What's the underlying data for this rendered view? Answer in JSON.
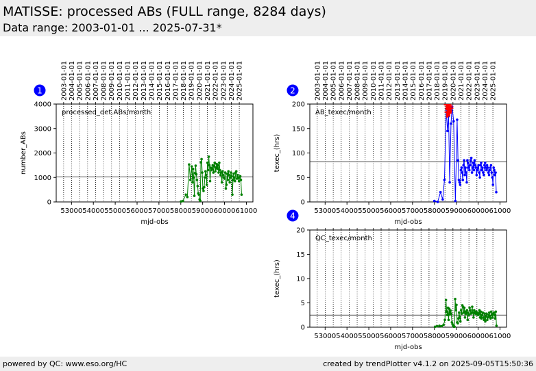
{
  "header": {
    "title": "MATISSE: processed ABs (FULL range, 8284 days)",
    "subtitle": "Data range: 2003-01-01 ... 2025-07-31*"
  },
  "footer": {
    "left": "powered by QC: www.eso.org/HC",
    "right": "created by trendPlotter v4.1.2 on 2025-09-05T15:50:36"
  },
  "colors": {
    "series1": "#008000",
    "series2": "#0000ff",
    "series3": "#008000",
    "outlier": "#ff0000",
    "badge": "#0000ff"
  },
  "year_ticks": [
    "2003-01-01",
    "2004-01-01",
    "2005-01-01",
    "2006-01-01",
    "2007-01-01",
    "2008-01-01",
    "2009-01-01",
    "2010-01-01",
    "2011-01-01",
    "2012-01-01",
    "2013-01-01",
    "2014-01-01",
    "2015-01-01",
    "2016-01-01",
    "2017-01-01",
    "2018-01-01",
    "2019-01-01",
    "2020-01-01",
    "2021-01-01",
    "2022-01-01",
    "2023-01-01",
    "2024-01-01",
    "2025-01-01"
  ],
  "chart_data": [
    {
      "type": "line",
      "badge": "1",
      "annotation": "processed_det.ABs/month",
      "xlabel": "mjd-obs",
      "ylabel": "number_ABs",
      "xlim": [
        52300,
        61300
      ],
      "ylim": [
        0,
        4000
      ],
      "xticks": [
        53000,
        54000,
        55000,
        56000,
        57000,
        58000,
        59000,
        60000,
        61000
      ],
      "yticks": [
        0,
        1000,
        2000,
        3000,
        4000
      ],
      "grid": "vertical dotted lines at year starts",
      "reference_line": 1020,
      "series": [
        {
          "x": [
            58010,
            58100,
            58230,
            58300,
            58380,
            58440,
            58500,
            58530,
            58560,
            58590,
            58620,
            58650,
            58680,
            58710,
            58740,
            58770,
            58800,
            58830,
            58860,
            58890,
            58920,
            58950,
            58980,
            59010,
            59040,
            59070,
            59100,
            59130,
            59160,
            59190,
            59220,
            59250,
            59280,
            59310,
            59340,
            59370,
            59400,
            59430,
            59460,
            59490,
            59520,
            59550,
            59580,
            59610,
            59640,
            59670,
            59700,
            59730,
            59760,
            59790,
            59820,
            59850,
            59880,
            59910,
            59940,
            59970,
            60000,
            60030,
            60060,
            60090,
            60120,
            60150,
            60180,
            60210,
            60240,
            60270,
            60300,
            60330,
            60360,
            60390,
            60420,
            60450,
            60480,
            60510,
            60540,
            60570,
            60600,
            60630,
            60660,
            60690,
            60720,
            60750,
            60780
          ],
          "values": [
            20,
            40,
            300,
            200,
            1530,
            900,
            1450,
            800,
            1350,
            1000,
            250,
            1180,
            1480,
            1130,
            900,
            650,
            350,
            300,
            100,
            50,
            1620,
            1750,
            1200,
            550,
            450,
            600,
            1000,
            1250,
            1100,
            700,
            1600,
            1300,
            1850,
            1500,
            850,
            1400,
            1300,
            1350,
            1500,
            1200,
            1450,
            1600,
            1250,
            1400,
            1550,
            1350,
            1500,
            1200,
            1600,
            1300,
            1100,
            1200,
            800,
            1250,
            1100,
            1000,
            950,
            1200,
            550,
            700,
            1150,
            900,
            1250,
            1100,
            800,
            1000,
            1200,
            1050,
            300,
            900,
            1150,
            1000,
            850,
            1200,
            1250,
            950,
            1100,
            1000,
            850,
            1000,
            1050,
            900,
            300
          ]
        }
      ]
    },
    {
      "type": "line",
      "badge": "2",
      "annotation": "AB_texec/month",
      "xlabel": "mjd-obs",
      "ylabel": "texec_(hrs)",
      "xlim": [
        52300,
        61300
      ],
      "ylim": [
        0,
        200
      ],
      "xticks": [
        53000,
        54000,
        55000,
        56000,
        57000,
        58000,
        59000,
        60000,
        61000
      ],
      "yticks": [
        0,
        50,
        100,
        150,
        200
      ],
      "grid": "vertical dotted lines at year starts",
      "reference_line": 82,
      "series": [
        {
          "x": [
            58000,
            58150,
            58280,
            58380,
            58460,
            58540,
            58600,
            58650,
            58700,
            58760,
            58810,
            58880,
            58960,
            59040,
            59080,
            59120,
            59150,
            59180,
            59210,
            59240,
            59270,
            59300,
            59330,
            59360,
            59390,
            59420,
            59450,
            59480,
            59510,
            59540,
            59570,
            59600,
            59630,
            59660,
            59690,
            59720,
            59750,
            59780,
            59810,
            59840,
            59870,
            59900,
            59930,
            59960,
            59990,
            60020,
            60050,
            60080,
            60110,
            60140,
            60170,
            60200,
            60230,
            60260,
            60290,
            60320,
            60350,
            60380,
            60410,
            60440,
            60470,
            60500,
            60530,
            60560,
            60590,
            60620,
            60650,
            60680,
            60710,
            60740,
            60770,
            60800,
            60830
          ],
          "values": [
            2,
            0,
            20,
            5,
            45,
            190,
            145,
            175,
            40,
            160,
            195,
            165,
            2,
            168,
            85,
            45,
            40,
            35,
            65,
            70,
            60,
            45,
            75,
            85,
            55,
            70,
            60,
            40,
            85,
            80,
            70,
            65,
            75,
            85,
            90,
            60,
            70,
            80,
            65,
            85,
            75,
            70,
            55,
            65,
            70,
            75,
            60,
            50,
            75,
            80,
            65,
            70,
            60,
            55,
            75,
            80,
            70,
            65,
            75,
            70,
            60,
            55,
            65,
            70,
            75,
            60,
            50,
            35,
            70,
            65,
            55,
            60,
            20
          ]
        },
        {
          "name_hidden": true,
          "x": [
            58560,
            58590,
            58620,
            58650,
            58680,
            58710,
            58740
          ],
          "values": [
            193,
            178,
            185,
            193,
            180,
            190,
            186
          ],
          "outlier": true
        }
      ]
    },
    {
      "type": "line",
      "badge": "4",
      "annotation": "QC_texec/month",
      "xlabel": "mjd-obs",
      "ylabel": "texec_(hrs)",
      "xlim": [
        52300,
        61300
      ],
      "ylim": [
        0,
        20
      ],
      "xticks": [
        53000,
        54000,
        55000,
        56000,
        57000,
        58000,
        59000,
        60000,
        61000
      ],
      "yticks": [
        0,
        5,
        10,
        15,
        20
      ],
      "grid": "vertical dotted lines at year starts",
      "reference_line": 2.5,
      "series": [
        {
          "x": [
            58030,
            58120,
            58230,
            58330,
            58420,
            58480,
            58530,
            58560,
            58590,
            58620,
            58650,
            58680,
            58710,
            58740,
            58770,
            58800,
            58830,
            58860,
            58890,
            58920,
            58950,
            58980,
            59010,
            59040,
            59070,
            59100,
            59130,
            59160,
            59190,
            59220,
            59250,
            59280,
            59310,
            59340,
            59370,
            59400,
            59430,
            59460,
            59490,
            59520,
            59550,
            59580,
            59610,
            59640,
            59670,
            59700,
            59730,
            59760,
            59790,
            59820,
            59850,
            59880,
            59910,
            59940,
            59970,
            60000,
            60030,
            60060,
            60090,
            60120,
            60150,
            60180,
            60210,
            60240,
            60270,
            60300,
            60330,
            60360,
            60390,
            60420,
            60450,
            60480,
            60510,
            60540,
            60570,
            60600,
            60630,
            60660,
            60690,
            60720,
            60750,
            60780,
            60810,
            60840
          ],
          "values": [
            0.1,
            0.2,
            0.3,
            0.2,
            0.5,
            1.5,
            5.6,
            3.2,
            2.5,
            4.0,
            1.5,
            3.8,
            2.6,
            3.4,
            2.8,
            1.0,
            0.6,
            0.3,
            0.1,
            0.1,
            5.8,
            3.5,
            4.6,
            1.0,
            0.8,
            1.8,
            3.0,
            2.0,
            1.2,
            3.5,
            2.8,
            4.5,
            4.2,
            3.0,
            4.0,
            2.0,
            3.2,
            2.8,
            3.5,
            1.5,
            3.0,
            2.5,
            4.0,
            3.5,
            2.8,
            3.0,
            4.2,
            3.0,
            2.0,
            3.5,
            3.0,
            2.8,
            3.2,
            2.6,
            3.0,
            2.5,
            2.8,
            3.5,
            2.0,
            3.2,
            1.8,
            2.5,
            3.0,
            2.0,
            1.5,
            2.8,
            1.2,
            2.2,
            2.8,
            1.5,
            2.0,
            2.5,
            3.0,
            2.2,
            1.8,
            3.2,
            2.5,
            2.0,
            2.8,
            3.0,
            2.5,
            1.8,
            3.2,
            0.3
          ]
        }
      ]
    }
  ]
}
